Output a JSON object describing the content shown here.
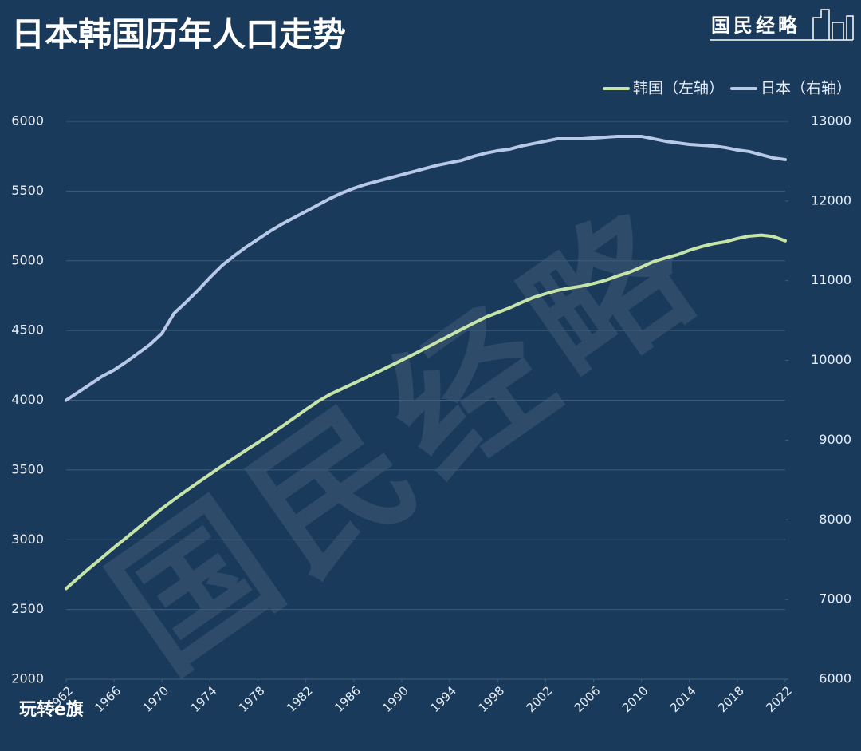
{
  "chart_data": {
    "type": "line",
    "title": "日本韩国历年人口走势",
    "logo": "国民经略",
    "watermark": "国民经略",
    "footer_logo": "玩转e旗",
    "legend": "top-right",
    "grid": true,
    "xlim": [
      1962,
      2022
    ],
    "xticks": [
      1962,
      1966,
      1970,
      1974,
      1978,
      1982,
      1986,
      1990,
      1994,
      1998,
      2002,
      2006,
      2010,
      2014,
      2018,
      2022
    ],
    "ylim": [
      2000,
      6000
    ],
    "yticks": [
      2000,
      2500,
      3000,
      3500,
      4000,
      4500,
      5000,
      5500,
      6000
    ],
    "y2lim": [
      6000,
      13000
    ],
    "y2ticks": [
      6000,
      7000,
      8000,
      9000,
      10000,
      11000,
      12000,
      13000
    ],
    "x": [
      1962,
      1963,
      1964,
      1965,
      1966,
      1967,
      1968,
      1969,
      1970,
      1971,
      1972,
      1973,
      1974,
      1975,
      1976,
      1977,
      1978,
      1979,
      1980,
      1981,
      1982,
      1983,
      1984,
      1985,
      1986,
      1987,
      1988,
      1989,
      1990,
      1991,
      1992,
      1993,
      1994,
      1995,
      1996,
      1997,
      1998,
      1999,
      2000,
      2001,
      2002,
      2003,
      2004,
      2005,
      2006,
      2007,
      2008,
      2009,
      2010,
      2011,
      2012,
      2013,
      2014,
      2015,
      2016,
      2017,
      2018,
      2019,
      2020,
      2021,
      2022
    ],
    "series": [
      {
        "name": "韩国（左轴）",
        "color": "#c6e3a8",
        "values": [
          2650,
          2726,
          2800,
          2871,
          2944,
          3013,
          3084,
          3154,
          3224,
          3288,
          3350,
          3410,
          3469,
          3528,
          3585,
          3642,
          3697,
          3753,
          3812,
          3872,
          3933,
          3991,
          4041,
          4081,
          4121,
          4162,
          4203,
          4245,
          4287,
          4330,
          4374,
          4419,
          4464,
          4509,
          4553,
          4595,
          4629,
          4662,
          4701,
          4737,
          4764,
          4788,
          4804,
          4818,
          4837,
          4860,
          4891,
          4918,
          4955,
          4994,
          5020,
          5043,
          5075,
          5101,
          5122,
          5136,
          5159,
          5177,
          5184,
          5174,
          5143
        ]
      },
      {
        "name": "日本（右轴）",
        "color": "#b7c9e6",
        "axis": "y2",
        "values": [
          9500,
          9600,
          9700,
          9800,
          9880,
          9980,
          10090,
          10200,
          10340,
          10590,
          10730,
          10880,
          11040,
          11190,
          11310,
          11420,
          11520,
          11620,
          11710,
          11790,
          11870,
          11950,
          12030,
          12100,
          12160,
          12210,
          12250,
          12290,
          12330,
          12370,
          12410,
          12450,
          12480,
          12510,
          12560,
          12600,
          12630,
          12650,
          12690,
          12720,
          12750,
          12780,
          12780,
          12780,
          12790,
          12800,
          12810,
          12810,
          12810,
          12780,
          12750,
          12730,
          12710,
          12700,
          12690,
          12670,
          12640,
          12620,
          12580,
          12540,
          12520
        ]
      }
    ]
  }
}
